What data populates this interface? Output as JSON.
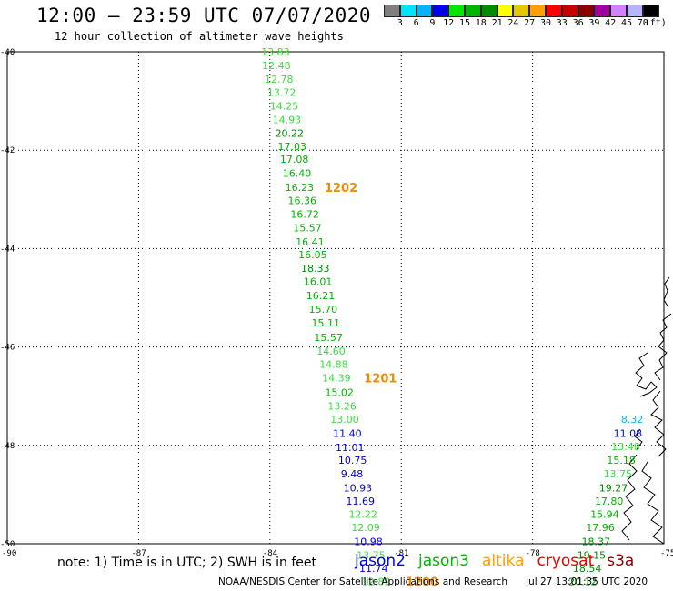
{
  "title": "12:00 – 23:59 UTC 07/07/2020",
  "subtitle": "12 hour collection of altimeter wave heights",
  "colorbar": {
    "colors": [
      "#7f7f7f",
      "#00e5ff",
      "#00b4ff",
      "#0000e6",
      "#00e600",
      "#00b400",
      "#008c00",
      "#ffff00",
      "#e6c800",
      "#ffa000",
      "#ff0000",
      "#c80000",
      "#8c0000",
      "#a000a0",
      "#d282ff",
      "#b4b4ff",
      "#000000"
    ],
    "labels": [
      "3",
      "6",
      "9",
      "12",
      "15",
      "18",
      "21",
      "24",
      "27",
      "30",
      "33",
      "36",
      "39",
      "42",
      "45",
      "70",
      "(ft)"
    ]
  },
  "axes": {
    "lat_labels": [
      "-40",
      "-42",
      "-44",
      "-46",
      "-48",
      "-50"
    ],
    "lon_labels": [
      "-90",
      "-87",
      "-84",
      "-81",
      "-78",
      "-75"
    ]
  },
  "observations": [
    {
      "value": "13.83",
      "lat": -40.0,
      "lon": -84.2,
      "color": "#3ddc3d"
    },
    {
      "value": "12.48",
      "lat": -40.28,
      "lon": -84.18,
      "color": "#3ddc3d"
    },
    {
      "value": "12.78",
      "lat": -40.55,
      "lon": -84.12,
      "color": "#3ddc3d"
    },
    {
      "value": "13.72",
      "lat": -40.82,
      "lon": -84.06,
      "color": "#3ddc3d"
    },
    {
      "value": "14.25",
      "lat": -41.1,
      "lon": -84.0,
      "color": "#3ddc3d"
    },
    {
      "value": "14.93",
      "lat": -41.38,
      "lon": -83.94,
      "color": "#3ddc3d"
    },
    {
      "value": "20.22",
      "lat": -41.65,
      "lon": -83.88,
      "color": "#008c00"
    },
    {
      "value": "17.03",
      "lat": -41.92,
      "lon": -83.82,
      "color": "#00b400"
    },
    {
      "value": "17.08",
      "lat": -42.18,
      "lon": -83.77,
      "color": "#00b400"
    },
    {
      "value": "16.40",
      "lat": -42.47,
      "lon": -83.71,
      "color": "#00b400"
    },
    {
      "value": "16.23",
      "lat": -42.75,
      "lon": -83.65,
      "color": "#00b400"
    },
    {
      "value": "16.36",
      "lat": -43.02,
      "lon": -83.59,
      "color": "#00b400"
    },
    {
      "value": "16.72",
      "lat": -43.3,
      "lon": -83.53,
      "color": "#00b400"
    },
    {
      "value": "15.57",
      "lat": -43.58,
      "lon": -83.47,
      "color": "#00b400"
    },
    {
      "value": "16.41",
      "lat": -43.86,
      "lon": -83.41,
      "color": "#00b400"
    },
    {
      "value": "16.05",
      "lat": -44.12,
      "lon": -83.35,
      "color": "#00b400"
    },
    {
      "value": "18.33",
      "lat": -44.4,
      "lon": -83.29,
      "color": "#008c00"
    },
    {
      "value": "16.01",
      "lat": -44.67,
      "lon": -83.23,
      "color": "#00b400"
    },
    {
      "value": "16.21",
      "lat": -44.95,
      "lon": -83.17,
      "color": "#00b400"
    },
    {
      "value": "15.70",
      "lat": -45.23,
      "lon": -83.11,
      "color": "#00b400"
    },
    {
      "value": "15.11",
      "lat": -45.51,
      "lon": -83.05,
      "color": "#00b400"
    },
    {
      "value": "15.57",
      "lat": -45.8,
      "lon": -82.99,
      "color": "#00b400"
    },
    {
      "value": "14.60",
      "lat": -46.08,
      "lon": -82.93,
      "color": "#3ddc3d"
    },
    {
      "value": "14.88",
      "lat": -46.35,
      "lon": -82.87,
      "color": "#3ddc3d"
    },
    {
      "value": "14.39",
      "lat": -46.63,
      "lon": -82.81,
      "color": "#3ddc3d"
    },
    {
      "value": "15.02",
      "lat": -46.92,
      "lon": -82.74,
      "color": "#00b400"
    },
    {
      "value": "13.26",
      "lat": -47.2,
      "lon": -82.68,
      "color": "#3ddc3d"
    },
    {
      "value": "13.00",
      "lat": -47.47,
      "lon": -82.62,
      "color": "#3ddc3d"
    },
    {
      "value": "11.40",
      "lat": -47.75,
      "lon": -82.56,
      "color": "#0000e6"
    },
    {
      "value": "11.01",
      "lat": -48.04,
      "lon": -82.5,
      "color": "#0000e6"
    },
    {
      "value": "10.75",
      "lat": -48.3,
      "lon": -82.44,
      "color": "#0000e6"
    },
    {
      "value": "9.48",
      "lat": -48.58,
      "lon": -82.38,
      "color": "#0000e6"
    },
    {
      "value": "10.93",
      "lat": -48.86,
      "lon": -82.32,
      "color": "#0000e6"
    },
    {
      "value": "11.69",
      "lat": -49.13,
      "lon": -82.26,
      "color": "#0000e6"
    },
    {
      "value": "12.22",
      "lat": -49.4,
      "lon": -82.2,
      "color": "#3ddc3d"
    },
    {
      "value": "12.09",
      "lat": -49.67,
      "lon": -82.14,
      "color": "#3ddc3d"
    },
    {
      "value": "10.98",
      "lat": -49.95,
      "lon": -82.08,
      "color": "#0000e6"
    },
    {
      "value": "13.75",
      "lat": -50.23,
      "lon": -82.02,
      "color": "#3ddc3d"
    },
    {
      "value": "11.74",
      "lat": -50.5,
      "lon": -81.96,
      "color": "#0000e6"
    },
    {
      "value": "12.89",
      "lat": -50.77,
      "lon": -81.9,
      "color": "#3ddc3d"
    },
    {
      "value": "11.08",
      "lat": -47.75,
      "lon": -76.15,
      "color": "#0000e6"
    },
    {
      "value": "13.48",
      "lat": -48.02,
      "lon": -76.2,
      "color": "#3ddc3d"
    },
    {
      "value": "15.18",
      "lat": -48.3,
      "lon": -76.3,
      "color": "#00b400"
    },
    {
      "value": "13.75",
      "lat": -48.58,
      "lon": -76.38,
      "color": "#3ddc3d"
    },
    {
      "value": "19.27",
      "lat": -48.86,
      "lon": -76.48,
      "color": "#008c00"
    },
    {
      "value": "17.80",
      "lat": -49.13,
      "lon": -76.58,
      "color": "#00b400"
    },
    {
      "value": "15.94",
      "lat": -49.4,
      "lon": -76.68,
      "color": "#00b400"
    },
    {
      "value": "17.96",
      "lat": -49.67,
      "lon": -76.78,
      "color": "#00b400"
    },
    {
      "value": "18.37",
      "lat": -49.95,
      "lon": -76.88,
      "color": "#008c00"
    },
    {
      "value": "19.15",
      "lat": -50.23,
      "lon": -76.98,
      "color": "#008c00"
    },
    {
      "value": "18.54",
      "lat": -50.5,
      "lon": -77.08,
      "color": "#008c00"
    },
    {
      "value": "20.12",
      "lat": -50.77,
      "lon": -77.18,
      "color": "#008c00"
    },
    {
      "value": "8.32",
      "lat": -47.47,
      "lon": -75.98,
      "color": "#00b4ff"
    }
  ],
  "time_labels": [
    {
      "text": "1202",
      "lat": -42.75,
      "lon": -82.75
    },
    {
      "text": "1201",
      "lat": -46.63,
      "lon": -81.85
    },
    {
      "text": "1200",
      "lat": -50.77,
      "lon": -80.9
    }
  ],
  "note": "note: 1) Time is in UTC; 2) SWH is in feet",
  "legend": [
    {
      "name": "jason2",
      "color": "#0000e6"
    },
    {
      "name": "jason3",
      "color": "#00b400"
    },
    {
      "name": "altika",
      "color": "#ffa000"
    },
    {
      "name": "cryosat",
      "color": "#e60000"
    },
    {
      "name": "s3a",
      "color": "#8c0000"
    }
  ],
  "credit": "NOAA/NESDIS Center for Satellite Applications and Research",
  "timestamp": "Jul 27 13:01:35 UTC 2020"
}
